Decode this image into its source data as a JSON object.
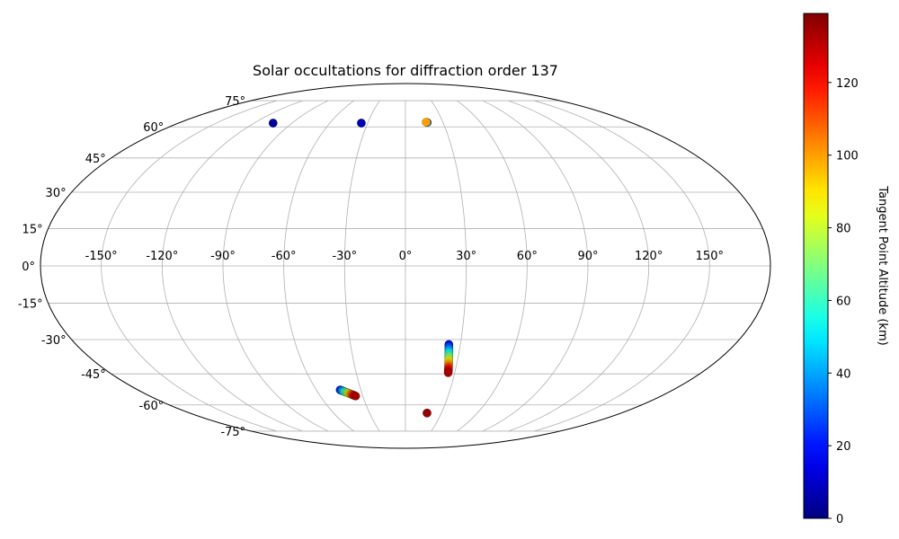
{
  "chart_data": {
    "type": "scatter",
    "projection": "mollweide",
    "title": "Solar occultations for diffraction order 137",
    "grid": true,
    "x_tick_labels": [
      "-150°",
      "-120°",
      "-90°",
      "-60°",
      "-30°",
      "0°",
      "30°",
      "60°",
      "90°",
      "120°",
      "150°"
    ],
    "y_tick_labels": [
      "-75°",
      "-60°",
      "-45°",
      "-30°",
      "-15°",
      "0°",
      "15°",
      "30°",
      "45°",
      "60°",
      "75°"
    ],
    "colorbar": {
      "label": "Tangent Point Altitude (km)",
      "colormap": "jet",
      "range": [
        0,
        139
      ],
      "ticks": [
        0,
        20,
        40,
        60,
        80,
        100,
        120
      ],
      "tick_labels": [
        "0",
        "20",
        "40",
        "60",
        "80",
        "100",
        "120"
      ]
    },
    "tracks": [
      {
        "lon_start": -105.0,
        "lat_start": 62.0,
        "lon_end": -105.0,
        "lat_end": 62.0,
        "alt_start": 0,
        "alt_end": 4,
        "count": 3
      },
      {
        "lon_start": -35.0,
        "lat_start": 62.0,
        "lon_end": -35.0,
        "lat_end": 62.0,
        "alt_start": 0,
        "alt_end": 8,
        "count": 3
      },
      {
        "lon_start": 17.5,
        "lat_start": 62.3,
        "lon_end": 16.5,
        "lat_end": 62.5,
        "alt_start": 2,
        "alt_end": 100,
        "count": 4
      },
      {
        "lon_start": 23.7,
        "lat_start": -32.0,
        "lon_end": 26.0,
        "lat_end": -44.5,
        "alt_start": 15,
        "alt_end": 134,
        "count": 36
      },
      {
        "lon_start": -44.0,
        "lat_start": -52.5,
        "lon_end": -35.0,
        "lat_end": -55.5,
        "alt_start": 18,
        "alt_end": 134,
        "count": 36
      },
      {
        "lon_start": 18.0,
        "lat_start": -64.3,
        "lon_end": 18.0,
        "lat_end": -64.3,
        "alt_start": 125,
        "alt_end": 136,
        "count": 3
      }
    ]
  }
}
